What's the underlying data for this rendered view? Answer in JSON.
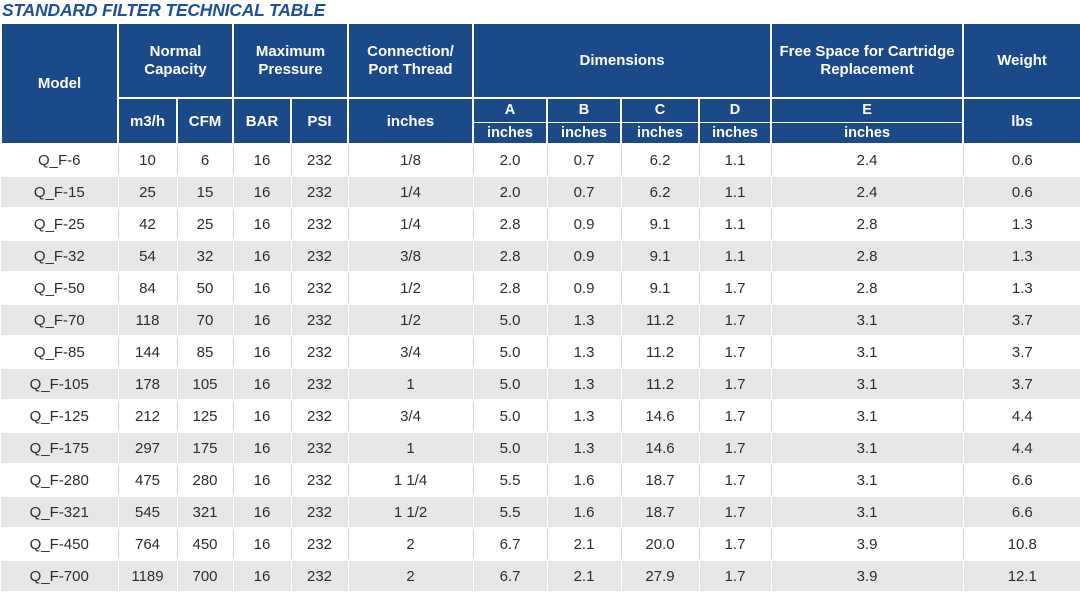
{
  "title": "STANDARD FILTER TECHNICAL TABLE",
  "colors": {
    "header_blue": "#1b4a8b",
    "title_blue": "#1d4f9e",
    "row_alt_gray": "#e7e7e8",
    "grid_gray": "#d7d7d9",
    "body_text": "#2e2d2c",
    "header_text": "#ffffff"
  },
  "table": {
    "headers": {
      "model": "Model",
      "normal_capacity": "Normal Capacity",
      "maximum_pressure": "Maximum Pressure",
      "connection": "Connection/ Port Thread",
      "dimensions": "Dimensions",
      "free_space": "Free Space for Cartridge Replacement",
      "weight": "Weight"
    },
    "subheaders": {
      "m3h": "m3/h",
      "cfm": "CFM",
      "bar": "BAR",
      "psi": "PSI",
      "connection_unit": "inches",
      "dim_a": "A",
      "dim_b": "B",
      "dim_c": "C",
      "dim_d": "D",
      "dim_e": "E",
      "unit_inches": "inches",
      "weight_unit": "lbs"
    },
    "rows": [
      [
        "Q_F-6",
        "10",
        "6",
        "16",
        "232",
        "1/8",
        "2.0",
        "0.7",
        "6.2",
        "1.1",
        "2.4",
        "0.6"
      ],
      [
        "Q_F-15",
        "25",
        "15",
        "16",
        "232",
        "1/4",
        "2.0",
        "0.7",
        "6.2",
        "1.1",
        "2.4",
        "0.6"
      ],
      [
        "Q_F-25",
        "42",
        "25",
        "16",
        "232",
        "1/4",
        "2.8",
        "0.9",
        "9.1",
        "1.1",
        "2.8",
        "1.3"
      ],
      [
        "Q_F-32",
        "54",
        "32",
        "16",
        "232",
        "3/8",
        "2.8",
        "0.9",
        "9.1",
        "1.1",
        "2.8",
        "1.3"
      ],
      [
        "Q_F-50",
        "84",
        "50",
        "16",
        "232",
        "1/2",
        "2.8",
        "0.9",
        "9.1",
        "1.7",
        "2.8",
        "1.3"
      ],
      [
        "Q_F-70",
        "118",
        "70",
        "16",
        "232",
        "1/2",
        "5.0",
        "1.3",
        "11.2",
        "1.7",
        "3.1",
        "3.7"
      ],
      [
        "Q_F-85",
        "144",
        "85",
        "16",
        "232",
        "3/4",
        "5.0",
        "1.3",
        "11.2",
        "1.7",
        "3.1",
        "3.7"
      ],
      [
        "Q_F-105",
        "178",
        "105",
        "16",
        "232",
        "1",
        "5.0",
        "1.3",
        "11.2",
        "1.7",
        "3.1",
        "3.7"
      ],
      [
        "Q_F-125",
        "212",
        "125",
        "16",
        "232",
        "3/4",
        "5.0",
        "1.3",
        "14.6",
        "1.7",
        "3.1",
        "4.4"
      ],
      [
        "Q_F-175",
        "297",
        "175",
        "16",
        "232",
        "1",
        "5.0",
        "1.3",
        "14.6",
        "1.7",
        "3.1",
        "4.4"
      ],
      [
        "Q_F-280",
        "475",
        "280",
        "16",
        "232",
        "1 1/4",
        "5.5",
        "1.6",
        "18.7",
        "1.7",
        "3.1",
        "6.6"
      ],
      [
        "Q_F-321",
        "545",
        "321",
        "16",
        "232",
        "1 1/2",
        "5.5",
        "1.6",
        "18.7",
        "1.7",
        "3.1",
        "6.6"
      ],
      [
        "Q_F-450",
        "764",
        "450",
        "16",
        "232",
        "2",
        "6.7",
        "2.1",
        "20.0",
        "1.7",
        "3.9",
        "10.8"
      ],
      [
        "Q_F-700",
        "1189",
        "700",
        "16",
        "232",
        "2",
        "6.7",
        "2.1",
        "27.9",
        "1.7",
        "3.9",
        "12.1"
      ]
    ]
  }
}
